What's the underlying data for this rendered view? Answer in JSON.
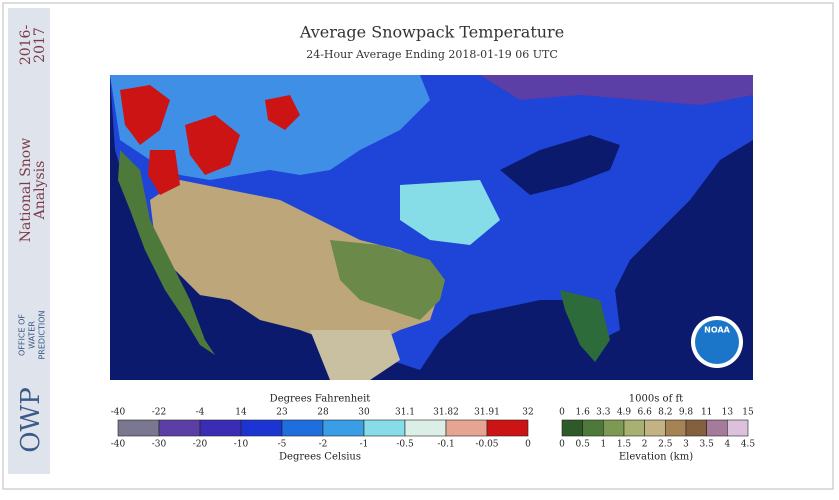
{
  "sidebar": {
    "title_line1": "National Snow",
    "title_line2": "Analysis",
    "years_line1": "2016-",
    "years_line2": "2017",
    "logo": "OWP",
    "office_line1": "OFFICE OF",
    "office_line2": "WATER",
    "office_line3": "PREDICTION"
  },
  "header": {
    "title": "Average Snowpack Temperature",
    "subtitle": "24-Hour Average Ending 2018-01-19 06 UTC"
  },
  "map": {
    "logo": "NOAA"
  },
  "temperature_legend": {
    "top_title": "Degrees Fahrenheit",
    "bottom_title": "Degrees Celsius",
    "top_labels": [
      "-40",
      "-22",
      "-4",
      "14",
      "23",
      "28",
      "30",
      "31.1",
      "31.82",
      "31.91",
      "32"
    ],
    "bottom_labels": [
      "-40",
      "-30",
      "-20",
      "-10",
      "-5",
      "-2",
      "-1",
      "-0.5",
      "-0.1",
      "-0.05",
      "0"
    ],
    "colors": [
      "#7a7890",
      "#5b3ea6",
      "#3a2cb4",
      "#1c34d2",
      "#1e6ede",
      "#3a9ee6",
      "#86dde8",
      "#dcefe6",
      "#e6a492",
      "#cc1414"
    ]
  },
  "elevation_legend": {
    "top_title": "1000s of ft",
    "bottom_title": "Elevation (km)",
    "top_labels": [
      "0",
      "1.6",
      "3.3",
      "4.9",
      "6.6",
      "8.2",
      "9.8",
      "11",
      "13",
      "15"
    ],
    "bottom_labels": [
      "0",
      "0.5",
      "1",
      "1.5",
      "2",
      "2.5",
      "3",
      "3.5",
      "4",
      "4.5"
    ],
    "colors": [
      "#2e5a2a",
      "#4d7a3a",
      "#7c9a52",
      "#a9b172",
      "#c3b283",
      "#a58352",
      "#83613f",
      "#a47b9b",
      "#dcc0dc"
    ]
  }
}
